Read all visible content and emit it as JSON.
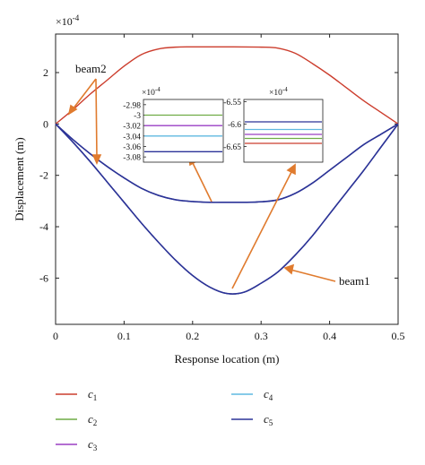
{
  "chart_data": {
    "type": "line",
    "xlabel": "Response location (m)",
    "ylabel": "Displacement (m)",
    "y_multiplier": "×10",
    "y_multiplier_exp": "-4",
    "xlim": [
      0,
      0.5
    ],
    "ylim": [
      -7.8,
      3.5
    ],
    "xticks": [
      "0",
      "0.1",
      "0.2",
      "0.3",
      "0.4",
      "0.5"
    ],
    "yticks": [
      "2",
      "0",
      "-2",
      "-4",
      "-6"
    ],
    "grid": false,
    "legend_placement": "below",
    "annotations": [
      {
        "text": "beam2"
      },
      {
        "text": "beam1"
      }
    ],
    "series": [
      {
        "name": "c",
        "subscript": "1",
        "color": "#cc3d2d",
        "curve": "red_arch",
        "x": [
          0,
          0.025,
          0.05,
          0.075,
          0.1,
          0.125,
          0.15,
          0.175,
          0.2,
          0.25,
          0.3,
          0.325,
          0.35,
          0.375,
          0.4,
          0.425,
          0.45,
          0.475,
          0.5
        ],
        "y": [
          0,
          0.55,
          1.15,
          1.7,
          2.25,
          2.7,
          2.92,
          2.99,
          3.0,
          3.0,
          2.99,
          2.95,
          2.75,
          2.35,
          1.9,
          1.4,
          0.9,
          0.45,
          0
        ]
      },
      {
        "name": "c",
        "subscript": "2",
        "color": "#6fac45"
      },
      {
        "name": "c",
        "subscript": "3",
        "color": "#9a3fc4"
      },
      {
        "name": "c",
        "subscript": "4",
        "color": "#5fb8e0"
      },
      {
        "name": "c",
        "subscript": "5",
        "color": "#2b3398"
      }
    ],
    "curves": {
      "beam2": {
        "x": [
          0,
          0.025,
          0.05,
          0.075,
          0.1,
          0.125,
          0.15,
          0.175,
          0.2,
          0.225,
          0.25,
          0.275,
          0.3,
          0.325,
          0.35,
          0.375,
          0.4,
          0.425,
          0.45,
          0.475,
          0.5
        ],
        "y": [
          0,
          -0.6,
          -1.15,
          -1.65,
          -2.1,
          -2.5,
          -2.78,
          -2.95,
          -3.02,
          -3.05,
          -3.05,
          -3.05,
          -3.03,
          -2.95,
          -2.7,
          -2.3,
          -1.8,
          -1.3,
          -0.8,
          -0.4,
          0
        ]
      },
      "beam1": {
        "x": [
          0,
          0.025,
          0.05,
          0.075,
          0.1,
          0.125,
          0.15,
          0.175,
          0.2,
          0.225,
          0.25,
          0.275,
          0.3,
          0.325,
          0.35,
          0.375,
          0.4,
          0.425,
          0.45,
          0.475,
          0.5
        ],
        "y": [
          0,
          -0.7,
          -1.45,
          -2.25,
          -3.05,
          -3.85,
          -4.6,
          -5.3,
          -5.9,
          -6.35,
          -6.6,
          -6.55,
          -6.2,
          -5.75,
          -5.1,
          -4.35,
          -3.5,
          -2.65,
          -1.8,
          -0.9,
          0
        ]
      }
    },
    "insets": [
      {
        "y_multiplier": "×10",
        "y_multiplier_exp": "-4",
        "yticks": [
          "-2.98",
          "-3",
          "-3.02",
          "-3.04",
          "-3.06",
          "-3.08"
        ],
        "ylim": [
          -3.09,
          -2.97
        ],
        "levels": [
          {
            "color": "#6fac45",
            "y": -3.0
          },
          {
            "color": "#9a3fc4",
            "y": -3.02
          },
          {
            "color": "#5fb8e0",
            "y": -3.04
          },
          {
            "color": "#2b3398",
            "y": -3.07
          }
        ]
      },
      {
        "y_multiplier": "×10",
        "y_multiplier_exp": "-4",
        "yticks": [
          "-6.55",
          "-6.6",
          "-6.65"
        ],
        "ylim": [
          -6.685,
          -6.545
        ],
        "levels": [
          {
            "color": "#2b3398",
            "y": -6.595
          },
          {
            "color": "#5fb8e0",
            "y": -6.612
          },
          {
            "color": "#9a3fc4",
            "y": -6.623
          },
          {
            "color": "#6fac45",
            "y": -6.632
          },
          {
            "color": "#cc3d2d",
            "y": -6.643
          }
        ]
      }
    ]
  }
}
